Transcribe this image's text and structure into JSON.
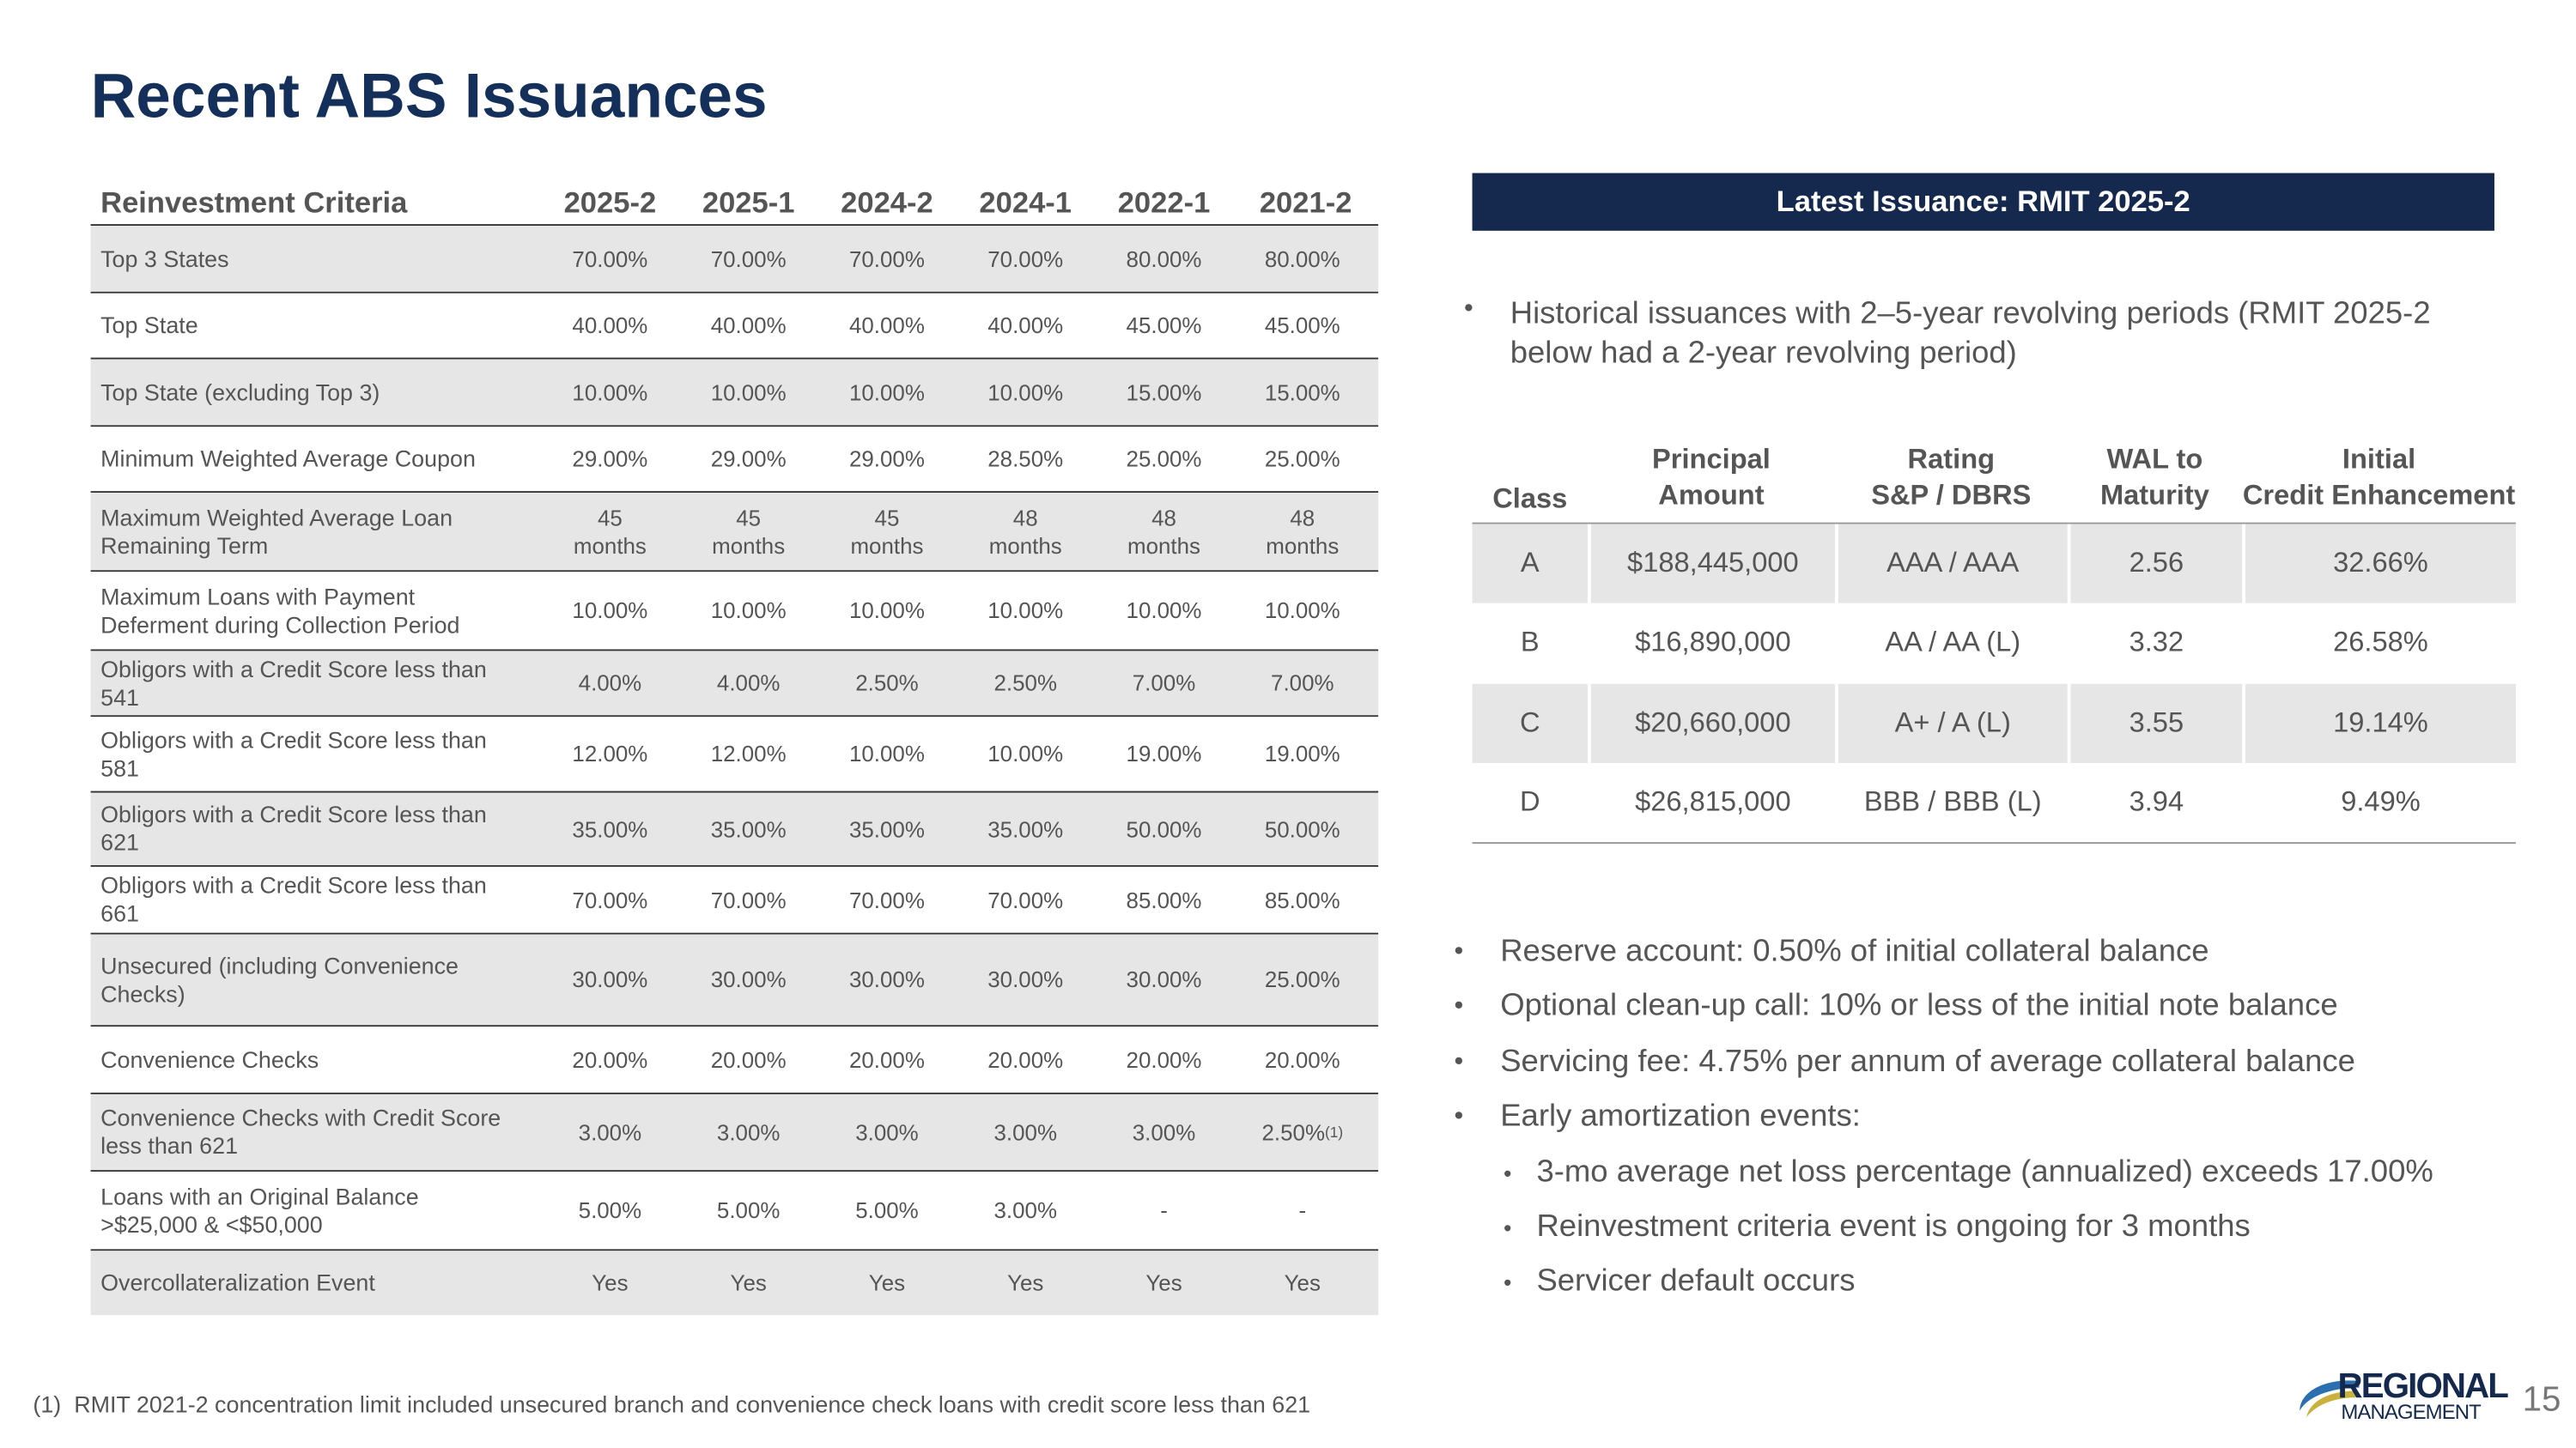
{
  "title": "Recent ABS Issuances",
  "criteria_table": {
    "header": [
      "Reinvestment Criteria",
      "2025-2",
      "2025-1",
      "2024-2",
      "2024-1",
      "2022-1",
      "2021-2"
    ],
    "rows": [
      {
        "label": "Top 3 States",
        "cells": [
          "70.00%",
          "70.00%",
          "70.00%",
          "70.00%",
          "80.00%",
          "80.00%"
        ]
      },
      {
        "label": "Top State",
        "cells": [
          "40.00%",
          "40.00%",
          "40.00%",
          "40.00%",
          "45.00%",
          "45.00%"
        ]
      },
      {
        "label": "Top State (excluding Top 3)",
        "cells": [
          "10.00%",
          "10.00%",
          "10.00%",
          "10.00%",
          "15.00%",
          "15.00%"
        ]
      },
      {
        "label": "Minimum Weighted Average Coupon",
        "cells": [
          "29.00%",
          "29.00%",
          "29.00%",
          "28.50%",
          "25.00%",
          "25.00%"
        ]
      },
      {
        "label": "Maximum Weighted Average Loan Remaining Term",
        "cells": [
          "45 months",
          "45 months",
          "45 months",
          "48 months",
          "48 months",
          "48 months"
        ]
      },
      {
        "label": "Maximum Loans with Payment Deferment during Collection Period",
        "cells": [
          "10.00%",
          "10.00%",
          "10.00%",
          "10.00%",
          "10.00%",
          "10.00%"
        ]
      },
      {
        "label": "Obligors with a Credit Score less than 541",
        "cells": [
          "4.00%",
          "4.00%",
          "2.50%",
          "2.50%",
          "7.00%",
          "7.00%"
        ]
      },
      {
        "label": "Obligors with a Credit Score less than 581",
        "cells": [
          "12.00%",
          "12.00%",
          "10.00%",
          "10.00%",
          "19.00%",
          "19.00%"
        ]
      },
      {
        "label": "Obligors with a Credit Score less than 621",
        "cells": [
          "35.00%",
          "35.00%",
          "35.00%",
          "35.00%",
          "50.00%",
          "50.00%"
        ]
      },
      {
        "label": "Obligors with a Credit Score less than 661",
        "cells": [
          "70.00%",
          "70.00%",
          "70.00%",
          "70.00%",
          "85.00%",
          "85.00%"
        ]
      },
      {
        "label": "Unsecured (including Convenience Checks)",
        "cells": [
          "30.00%",
          "30.00%",
          "30.00%",
          "30.00%",
          "30.00%",
          "25.00%"
        ]
      },
      {
        "label": "Convenience Checks",
        "cells": [
          "20.00%",
          "20.00%",
          "20.00%",
          "20.00%",
          "20.00%",
          "20.00%"
        ]
      },
      {
        "label": "Convenience Checks with Credit Score less than 621",
        "cells": [
          "3.00%",
          "3.00%",
          "3.00%",
          "3.00%",
          "3.00%",
          {
            "text": "2.50%",
            "sup": "(1)"
          }
        ]
      },
      {
        "label": "Loans with an Original Balance >$25,000 & <$50,000",
        "cells": [
          "5.00%",
          "5.00%",
          "5.00%",
          "3.00%",
          "-",
          "-"
        ]
      },
      {
        "label": "Overcollateralization Event",
        "cells": [
          "Yes",
          "Yes",
          "Yes",
          "Yes",
          "Yes",
          "Yes"
        ]
      }
    ]
  },
  "footnote": {
    "mark": "(1)",
    "text": "RMIT 2021-2 concentration limit included unsecured branch and convenience check loans with credit score less than 621"
  },
  "latest_issuance": {
    "heading": "Latest Issuance: RMIT 2025-2",
    "intro_bullet": "Historical issuances with 2–5-year revolving periods (RMIT 2025-2 below had a 2-year revolving period)",
    "class_table": {
      "header": [
        "Class",
        "Principal\nAmount",
        "Rating\nS&P / DBRS",
        "WAL to\nMaturity",
        "Initial\nCredit Enhancement"
      ],
      "rows": [
        [
          "A",
          "$188,445,000",
          "AAA / AAA",
          "2.56",
          "32.66%"
        ],
        [
          "B",
          "$16,890,000",
          "AA / AA (L)",
          "3.32",
          "26.58%"
        ],
        [
          "C",
          "$20,660,000",
          "A+ / A (L)",
          "3.55",
          "19.14%"
        ],
        [
          "D",
          "$26,815,000",
          "BBB / BBB (L)",
          "3.94",
          "9.49%"
        ]
      ]
    },
    "bullets": [
      {
        "text": "Reserve account: 0.50% of initial collateral balance"
      },
      {
        "text": "Optional clean-up call: 10% or less of the initial note balance"
      },
      {
        "text": "Servicing fee: 4.75% per annum of average collateral balance"
      },
      {
        "text": "Early amortization events:",
        "sub": [
          "3-mo average net loss percentage (annualized) exceeds 17.00%",
          "Reinvestment criteria event is ongoing for 3 months",
          "Servicer default occurs"
        ]
      }
    ]
  },
  "footer": {
    "logo_top": "REGIONAL",
    "logo_bottom": "MANAGEMENT",
    "page_number": "15"
  }
}
